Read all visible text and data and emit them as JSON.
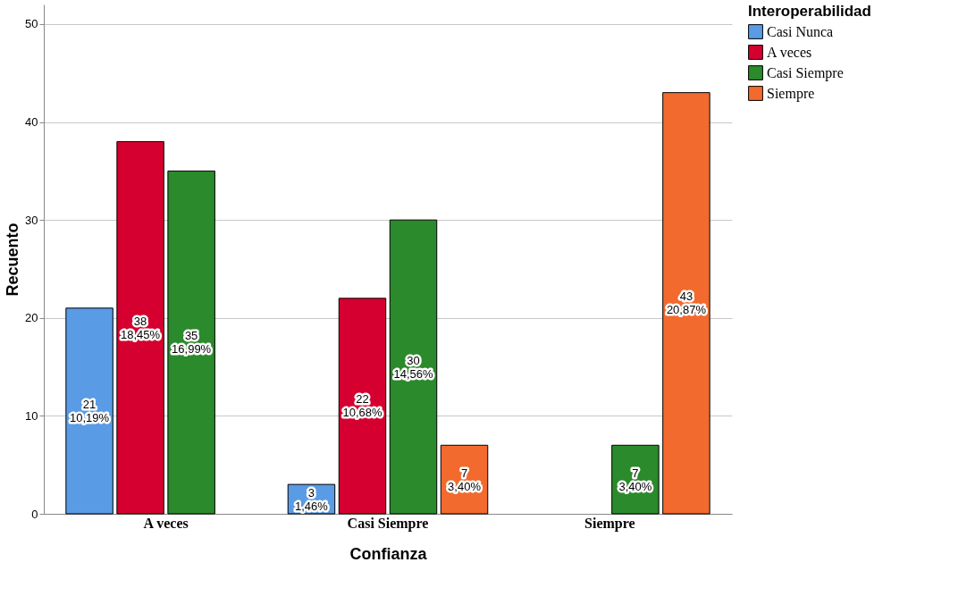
{
  "chart_data": {
    "type": "bar",
    "xlabel": "Confianza",
    "ylabel": "Recuento",
    "legend_title": "Interoperabilidad",
    "categories": [
      "A veces",
      "Casi Siempre",
      "Siempre"
    ],
    "series": [
      {
        "name": "Casi Nunca",
        "color": "#5a9be6",
        "values": [
          21,
          3,
          null
        ],
        "value_labels": [
          "21\n10,19%",
          "3\n1,46%",
          null
        ]
      },
      {
        "name": "A veces",
        "color": "#d5002f",
        "values": [
          38,
          22,
          null
        ],
        "value_labels": [
          "38\n18,45%",
          "22\n10,68%",
          null
        ]
      },
      {
        "name": "Casi Siempre",
        "color": "#2b8a2b",
        "values": [
          35,
          30,
          7
        ],
        "value_labels": [
          "35\n16,99%",
          "30\n14,56%",
          "7\n3,40%"
        ]
      },
      {
        "name": "Siempre",
        "color": "#f26a2e",
        "values": [
          null,
          7,
          43
        ],
        "value_labels": [
          null,
          "7\n3,40%",
          "43\n20,87%"
        ]
      }
    ],
    "ylim": [
      0,
      52
    ],
    "yticks": [
      0,
      10,
      20,
      30,
      40,
      50
    ],
    "grid": "y",
    "legend": "top right"
  }
}
